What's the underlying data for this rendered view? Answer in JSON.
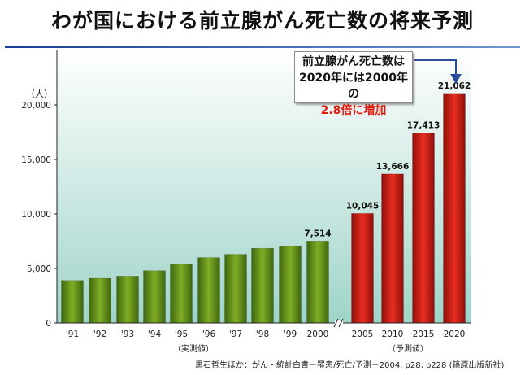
{
  "title": "わが国における前立腺がん死亡数の将来予測",
  "callout": {
    "line1": "前立腺がん死亡数は",
    "line2": "2020年には2000年の",
    "line3": "2.8倍に増加"
  },
  "source": "黒石哲生ほか：がん・統計白書－罹患/死亡/予測－2004, p28, p228 (篠原出版新社)",
  "colors": {
    "actual": "#6e9a1e",
    "forecast": "#d0201a",
    "highlight": "#e8180c",
    "arrow": "#2a4a9a"
  },
  "chart_data": {
    "type": "bar",
    "title": "わが国における前立腺がん死亡数の将来予測",
    "ylabel": "（人）",
    "xlabel": "",
    "ylim": [
      0,
      25000
    ],
    "yticks": [
      0,
      5000,
      10000,
      15000,
      20000
    ],
    "ytick_labels": [
      "0",
      "5,000",
      "10,000",
      "15,000",
      "20,000"
    ],
    "grid": false,
    "groups": [
      {
        "label": "（実測値）",
        "color": "#6e9a1e"
      },
      {
        "label": "（予測値）",
        "color": "#d0201a"
      }
    ],
    "categories": [
      "'91",
      "'92",
      "'93",
      "'94",
      "'95",
      "'96",
      "'97",
      "'98",
      "'99",
      "2000",
      "2005",
      "2010",
      "2015",
      "2020"
    ],
    "values": [
      3900,
      4100,
      4300,
      4800,
      5400,
      6000,
      6300,
      6850,
      7050,
      7514,
      10045,
      13666,
      17413,
      21062
    ],
    "group_index": [
      0,
      0,
      0,
      0,
      0,
      0,
      0,
      0,
      0,
      0,
      1,
      1,
      1,
      1
    ],
    "data_labels": [
      "",
      "",
      "",
      "",
      "",
      "",
      "",
      "",
      "",
      "7,514",
      "10,045",
      "13,666",
      "17,413",
      "21,062"
    ]
  }
}
